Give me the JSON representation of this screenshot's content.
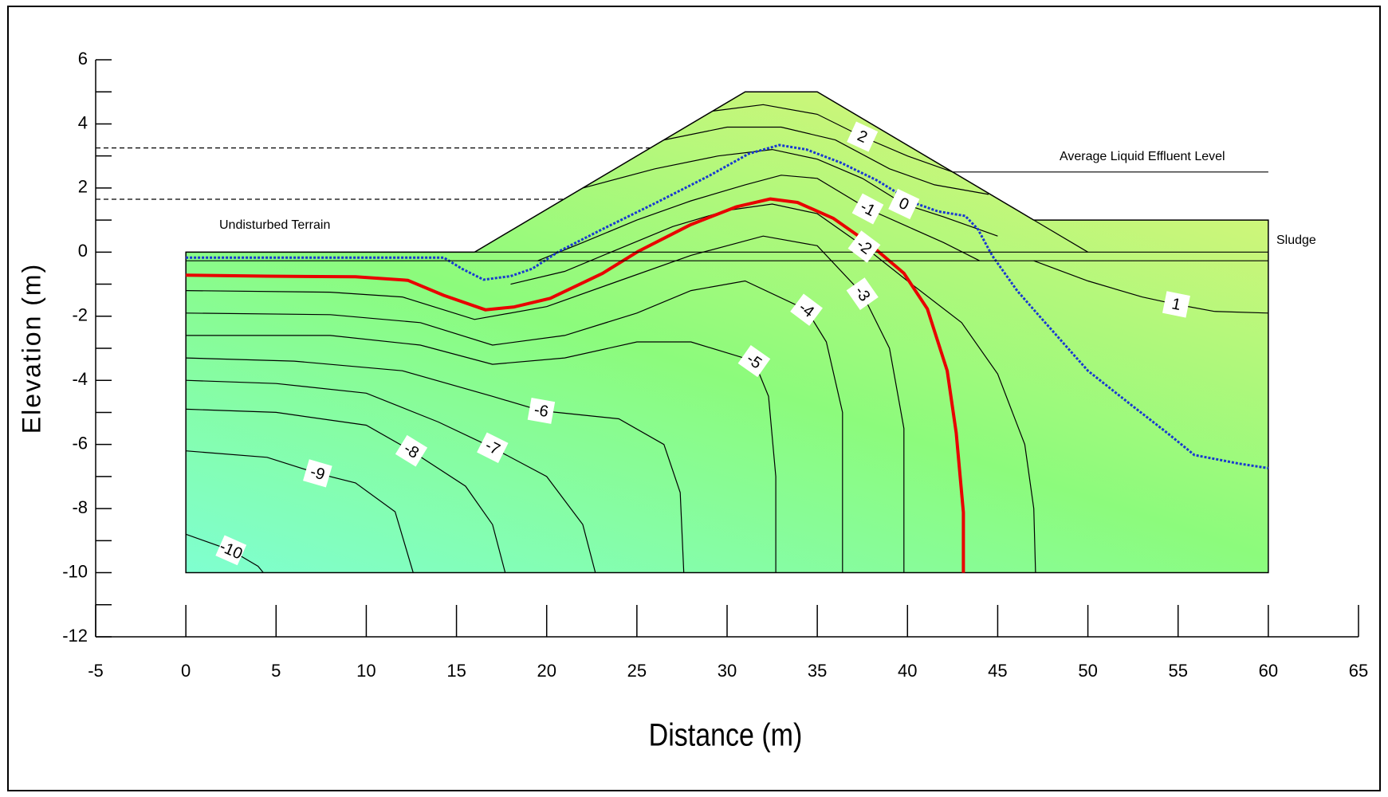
{
  "chart_data": {
    "type": "contour",
    "x_label": "Distance (m)",
    "y_label": "Elevation (m)",
    "xlim": [
      -5,
      65
    ],
    "xticks": [
      -5,
      0,
      5,
      10,
      15,
      20,
      25,
      30,
      35,
      40,
      45,
      50,
      55,
      60,
      65
    ],
    "ylim": [
      -12,
      6
    ],
    "yticks": [
      -12,
      -10,
      -8,
      -6,
      -4,
      -2,
      0,
      2,
      4,
      6
    ],
    "fill_colors": [
      "#7fffd0",
      "#8cfb7c",
      "#d6f57a"
    ],
    "contour_color": "#000000",
    "domain": {
      "x": [
        0,
        0,
        16,
        31,
        35,
        47,
        60,
        60
      ],
      "y": [
        -10,
        0,
        0,
        5,
        5,
        1,
        1,
        -10
      ]
    },
    "contours": [
      {
        "level": 2,
        "x": [
          29.2,
          32,
          35,
          37.5,
          40,
          42.5
        ],
        "y": [
          4.4,
          4.6,
          4.3,
          3.6,
          3.0,
          2.5
        ]
      },
      {
        "level": 1,
        "x": [
          47,
          50,
          53,
          54.9,
          57,
          60
        ],
        "y": [
          -0.27,
          -0.9,
          -1.4,
          -1.63,
          -1.85,
          -1.9
        ]
      },
      {
        "level": 0,
        "x": [
          22,
          26,
          29.5,
          32.5,
          35,
          37.5,
          39.8,
          42,
          45
        ],
        "y": [
          2.0,
          2.6,
          3.0,
          3.2,
          2.9,
          2.3,
          1.5,
          1.1,
          0.5
        ]
      },
      {
        "level": -1,
        "x": [
          19.5,
          22,
          25,
          28,
          31,
          33,
          35,
          37.8,
          40,
          42,
          44
        ],
        "y": [
          -0.27,
          0.3,
          1.0,
          1.6,
          2.1,
          2.4,
          2.3,
          1.35,
          0.8,
          0.3,
          -0.27
        ]
      },
      {
        "level": -2,
        "x": [
          18,
          21,
          24,
          27,
          30,
          32.5,
          35,
          37.6,
          40,
          43,
          45,
          46.5,
          47,
          47.1
        ],
        "y": [
          -1.0,
          -0.6,
          0.1,
          0.8,
          1.3,
          1.5,
          1.2,
          0.17,
          -0.9,
          -2.2,
          -3.8,
          -6,
          -8,
          -10
        ]
      },
      {
        "level": -3,
        "x": [
          0,
          8,
          12,
          16,
          20,
          24,
          28,
          32,
          35,
          37.5,
          39,
          39.8,
          39.8
        ],
        "y": [
          -1.2,
          -1.25,
          -1.4,
          -2.1,
          -1.7,
          -0.9,
          -0.1,
          0.5,
          0.2,
          -1.3,
          -3,
          -5.5,
          -10
        ]
      },
      {
        "level": -4,
        "x": [
          0,
          8,
          13,
          17,
          21,
          25,
          28,
          31,
          34.4,
          35.5,
          36.4,
          36.4
        ],
        "y": [
          -1.9,
          -1.95,
          -2.2,
          -2.9,
          -2.6,
          -1.9,
          -1.2,
          -0.9,
          -1.8,
          -2.8,
          -5,
          -10
        ]
      },
      {
        "level": -5,
        "x": [
          0,
          8,
          13,
          17,
          21,
          25,
          28,
          31.5,
          32.3,
          32.7,
          32.7
        ],
        "y": [
          -2.6,
          -2.6,
          -2.9,
          -3.5,
          -3.3,
          -2.8,
          -2.8,
          -3.4,
          -4.5,
          -7,
          -10
        ]
      },
      {
        "level": -6,
        "x": [
          0,
          6,
          12,
          17,
          19.7,
          24,
          26.5,
          27.4,
          27.6
        ],
        "y": [
          -3.3,
          -3.4,
          -3.7,
          -4.5,
          -4.95,
          -5.2,
          -6,
          -7.5,
          -10
        ]
      },
      {
        "level": -7,
        "x": [
          0,
          5,
          10,
          14,
          17,
          20,
          22,
          22.7
        ],
        "y": [
          -4.0,
          -4.1,
          -4.4,
          -5.3,
          -6.1,
          -7.0,
          -8.5,
          -10
        ]
      },
      {
        "level": -8,
        "x": [
          0,
          5,
          10,
          12.5,
          15.5,
          17,
          17.7
        ],
        "y": [
          -4.9,
          -5.0,
          -5.4,
          -6.2,
          -7.3,
          -8.5,
          -10
        ]
      },
      {
        "level": -9,
        "x": [
          0,
          4.5,
          7.3,
          9.4,
          11.6,
          12.6
        ],
        "y": [
          -6.2,
          -6.4,
          -6.9,
          -7.2,
          -8.1,
          -10
        ]
      },
      {
        "level": -10,
        "x": [
          0,
          2.5,
          4,
          4.3
        ],
        "y": [
          -8.8,
          -9.3,
          -9.8,
          -10
        ]
      }
    ],
    "unlabeled_contours": [
      {
        "x": [
          26.5,
          30,
          33,
          36,
          39,
          41.5,
          44.5
        ],
        "y": [
          3.5,
          3.9,
          3.9,
          3.5,
          2.6,
          2.1,
          1.8
        ]
      }
    ],
    "reference_lines": [
      {
        "style": "dashed",
        "x": [
          -5,
          25.75
        ],
        "y": [
          3.25,
          3.25
        ]
      },
      {
        "style": "dashed",
        "x": [
          -5,
          21
        ],
        "y": [
          1.65,
          1.65
        ]
      },
      {
        "style": "solid",
        "x": [
          42.5,
          60
        ],
        "y": [
          2.5,
          2.5
        ]
      },
      {
        "style": "solid",
        "x": [
          0,
          60
        ],
        "y": [
          0,
          0
        ]
      },
      {
        "style": "solid",
        "x": [
          0,
          60
        ],
        "y": [
          -0.27,
          -0.27
        ]
      },
      {
        "style": "solid",
        "x": [
          47,
          50
        ],
        "y": [
          1,
          0
        ]
      }
    ],
    "series": [
      {
        "color": "#e80000",
        "style": "solid",
        "x": [
          0,
          4.5,
          9.4,
          12.3,
          14.3,
          16.6,
          18.2,
          20.2,
          23.1,
          25.1,
          28.0,
          30.5,
          32.4,
          33.9,
          35.9,
          37.8,
          39.8,
          41.1,
          42.2,
          42.7,
          43.1,
          43.1
        ],
        "y": [
          -0.72,
          -0.75,
          -0.77,
          -0.88,
          -1.35,
          -1.8,
          -1.71,
          -1.44,
          -0.66,
          0.03,
          0.86,
          1.41,
          1.66,
          1.55,
          1.05,
          0.3,
          -0.66,
          -1.77,
          -3.7,
          -5.64,
          -8.12,
          -10
        ]
      },
      {
        "color": "#1838d0",
        "style": "dotted",
        "x": [
          0,
          14.3,
          15.3,
          16.5,
          18.0,
          19.2,
          20.7,
          23.1,
          26.1,
          29.0,
          31.2,
          32.9,
          34.4,
          36.3,
          38.3,
          40.3,
          41.7,
          43.2,
          43.9,
          44.7,
          46.1,
          47.6,
          50.0,
          52.5,
          54.4,
          55.9,
          58.4,
          60
        ],
        "y": [
          -0.17,
          -0.17,
          -0.52,
          -0.86,
          -0.75,
          -0.52,
          0.03,
          0.72,
          1.55,
          2.38,
          3.07,
          3.34,
          3.2,
          2.79,
          2.24,
          1.55,
          1.27,
          1.13,
          0.72,
          -0.11,
          -1.22,
          -2.18,
          -3.7,
          -4.81,
          -5.64,
          -6.33,
          -6.6,
          -6.74
        ]
      }
    ],
    "annotations": [
      "Undisturbed Terrain",
      "Average Liquid Effluent Level",
      "Sludge"
    ]
  }
}
